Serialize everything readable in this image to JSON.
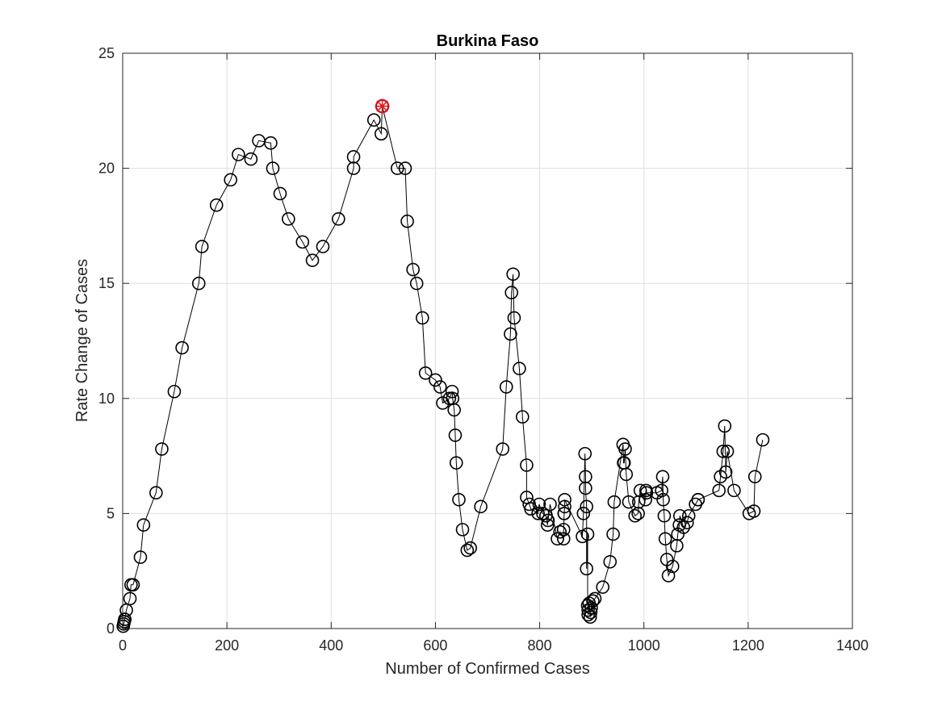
{
  "chart_data": {
    "type": "scatter",
    "title": "Burkina Faso",
    "xlabel": "Number of Confirmed Cases",
    "ylabel": "Rate Change of Cases",
    "xlim": [
      0,
      1400
    ],
    "ylim": [
      0,
      25
    ],
    "xticks": [
      0,
      200,
      400,
      600,
      800,
      1000,
      1200,
      1400
    ],
    "yticks": [
      0,
      5,
      10,
      15,
      20,
      25
    ],
    "grid": true,
    "line_color": "#000000",
    "marker_color": "#000000",
    "highlight_color": "#e8141c",
    "series": [
      {
        "x": [
          1,
          2,
          3,
          4,
          4,
          7,
          14,
          16,
          20,
          34,
          40,
          64,
          75,
          99,
          114,
          146,
          152,
          180,
          207,
          222,
          246,
          261,
          284,
          288,
          302,
          318,
          345,
          364,
          384,
          414,
          443,
          443,
          482,
          496,
          498,
          527,
          542,
          546,
          557,
          564,
          575,
          581,
          600,
          609,
          614,
          627,
          632,
          633,
          636,
          638,
          640,
          645,
          652,
          661,
          667,
          687,
          729,
          736,
          744,
          746,
          749,
          751,
          761,
          767,
          775,
          775,
          780,
          783,
          797,
          799,
          806,
          812,
          815,
          816,
          820,
          834,
          839,
          846,
          846,
          847,
          847,
          848,
          848,
          882,
          884,
          887,
          888,
          888,
          890,
          890,
          892,
          892,
          893,
          893,
          895,
          897,
          898,
          899,
          902,
          906,
          921,
          935,
          941,
          943,
          960,
          961,
          962,
          964,
          966,
          971,
          983,
          989,
          990,
          993,
          1003,
          1004,
          1005,
          1025,
          1034,
          1036,
          1037,
          1039,
          1041,
          1044,
          1047,
          1055,
          1063,
          1065,
          1068,
          1069,
          1076,
          1083,
          1086,
          1099,
          1104,
          1104,
          1144,
          1147,
          1152,
          1155,
          1157,
          1160,
          1173,
          1202,
          1211,
          1213,
          1228
        ],
        "y": [
          0.1,
          0.2,
          0.3,
          0.4,
          0.4,
          0.8,
          1.3,
          1.9,
          1.9,
          3.1,
          4.5,
          5.9,
          7.8,
          10.3,
          12.2,
          15.0,
          16.6,
          18.4,
          19.5,
          20.6,
          20.4,
          21.2,
          21.1,
          20.0,
          18.9,
          17.8,
          16.8,
          16.0,
          16.6,
          17.8,
          20.0,
          20.5,
          22.1,
          21.5,
          22.7,
          20.0,
          20.0,
          17.7,
          15.6,
          15.0,
          13.5,
          11.1,
          10.8,
          10.5,
          9.8,
          10.0,
          10.3,
          10.0,
          9.5,
          8.4,
          7.2,
          5.6,
          4.3,
          3.4,
          3.5,
          5.3,
          7.8,
          10.5,
          12.8,
          14.6,
          15.4,
          13.5,
          11.3,
          9.2,
          7.1,
          5.7,
          5.4,
          5.2,
          5.0,
          5.4,
          5.0,
          4.9,
          4.5,
          4.7,
          5.4,
          3.9,
          4.2,
          3.9,
          4.3,
          5.0,
          5.0,
          5.3,
          5.6,
          4.0,
          5.0,
          7.6,
          6.6,
          6.1,
          5.3,
          2.6,
          4.1,
          1.0,
          0.8,
          0.6,
          1.1,
          0.5,
          0.7,
          0.9,
          1.2,
          1.3,
          1.8,
          2.9,
          4.1,
          5.5,
          8.0,
          7.2,
          7.2,
          7.8,
          6.7,
          5.5,
          4.9,
          5.0,
          5.5,
          6.0,
          5.6,
          6.0,
          5.9,
          5.9,
          6.0,
          6.6,
          5.6,
          4.9,
          3.9,
          3.0,
          2.3,
          2.7,
          3.6,
          4.1,
          4.5,
          4.9,
          4.4,
          4.6,
          4.9,
          5.4,
          5.6,
          5.6,
          6.0,
          6.6,
          7.7,
          8.8,
          6.8,
          7.7,
          6.0,
          5.0,
          5.1,
          6.6,
          8.2
        ],
        "highlight_index": 34
      }
    ]
  }
}
